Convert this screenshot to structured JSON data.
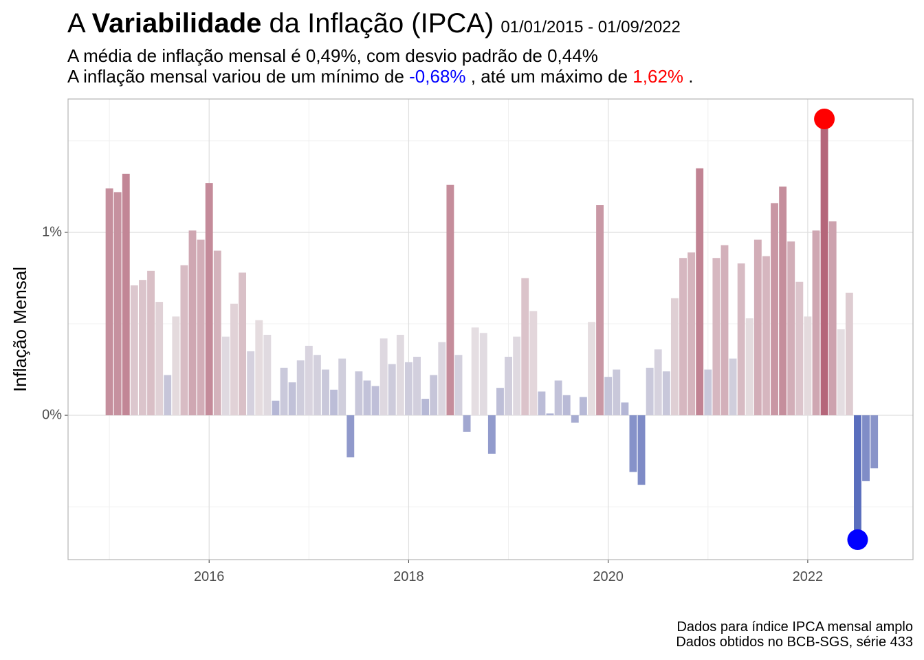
{
  "chart_data": {
    "type": "bar",
    "title_parts": [
      "A ",
      "Variabilidade",
      " da Inflação (IPCA)"
    ],
    "date_range": "01/01/2015 - 01/09/2022",
    "subtitle_line1": "A média de inflação mensal é 0,49%, com desvio padrão de 0,44%",
    "subtitle_line2_parts": [
      "A inflação mensal variou de um mínimo de ",
      "-0,68%",
      " , até um máximo de ",
      "1,62%",
      " ."
    ],
    "subtitle_colors": [
      "#000000",
      "#0000ff",
      "#000000",
      "#ff0000",
      "#000000"
    ],
    "ylabel": "Inflação Mensal",
    "caption": [
      "Dados para índice IPCA mensal amplo",
      "Dados obtidos no BCB-SGS, série 433"
    ],
    "x": [
      "2015-01",
      "2015-02",
      "2015-03",
      "2015-04",
      "2015-05",
      "2015-06",
      "2015-07",
      "2015-08",
      "2015-09",
      "2015-10",
      "2015-11",
      "2015-12",
      "2016-01",
      "2016-02",
      "2016-03",
      "2016-04",
      "2016-05",
      "2016-06",
      "2016-07",
      "2016-08",
      "2016-09",
      "2016-10",
      "2016-11",
      "2016-12",
      "2017-01",
      "2017-02",
      "2017-03",
      "2017-04",
      "2017-05",
      "2017-06",
      "2017-07",
      "2017-08",
      "2017-09",
      "2017-10",
      "2017-11",
      "2017-12",
      "2018-01",
      "2018-02",
      "2018-03",
      "2018-04",
      "2018-05",
      "2018-06",
      "2018-07",
      "2018-08",
      "2018-09",
      "2018-10",
      "2018-11",
      "2018-12",
      "2019-01",
      "2019-02",
      "2019-03",
      "2019-04",
      "2019-05",
      "2019-06",
      "2019-07",
      "2019-08",
      "2019-09",
      "2019-10",
      "2019-11",
      "2019-12",
      "2020-01",
      "2020-02",
      "2020-03",
      "2020-04",
      "2020-05",
      "2020-06",
      "2020-07",
      "2020-08",
      "2020-09",
      "2020-10",
      "2020-11",
      "2020-12",
      "2021-01",
      "2021-02",
      "2021-03",
      "2021-04",
      "2021-05",
      "2021-06",
      "2021-07",
      "2021-08",
      "2021-09",
      "2021-10",
      "2021-11",
      "2021-12",
      "2022-01",
      "2022-02",
      "2022-03",
      "2022-04",
      "2022-05",
      "2022-06",
      "2022-07",
      "2022-08",
      "2022-09"
    ],
    "values": [
      1.24,
      1.22,
      1.32,
      0.71,
      0.74,
      0.79,
      0.62,
      0.22,
      0.54,
      0.82,
      1.01,
      0.96,
      1.27,
      0.9,
      0.43,
      0.61,
      0.78,
      0.35,
      0.52,
      0.44,
      0.08,
      0.26,
      0.18,
      0.3,
      0.38,
      0.33,
      0.25,
      0.14,
      0.31,
      -0.23,
      0.24,
      0.19,
      0.16,
      0.42,
      0.28,
      0.44,
      0.29,
      0.32,
      0.09,
      0.22,
      0.4,
      1.26,
      0.33,
      -0.09,
      0.48,
      0.45,
      -0.21,
      0.15,
      0.32,
      0.43,
      0.75,
      0.57,
      0.13,
      0.01,
      0.19,
      0.11,
      -0.04,
      0.1,
      0.51,
      1.15,
      0.21,
      0.25,
      0.07,
      -0.31,
      -0.38,
      0.26,
      0.36,
      0.24,
      0.64,
      0.86,
      0.89,
      1.35,
      0.25,
      0.86,
      0.93,
      0.31,
      0.83,
      0.53,
      0.96,
      0.87,
      1.16,
      1.25,
      0.95,
      0.73,
      0.54,
      1.01,
      1.62,
      1.06,
      0.47,
      0.67,
      -0.68,
      -0.36,
      -0.29
    ],
    "color_scale": {
      "low": "#5a6ebd",
      "mid": "#e6dfe2",
      "high": "#b5667a",
      "midpoint": 0.49
    },
    "max_color": "#ff0000",
    "min_color": "#0000ff",
    "xlim": [
      2014.586,
      2023.055
    ],
    "xticks": [
      2016,
      2018,
      2020,
      2022
    ],
    "xminor": [
      2015,
      2017,
      2019,
      2021
    ],
    "ylim": [
      -0.789,
      1.729
    ],
    "yticks": [
      {
        "value": 0,
        "label": "0%"
      },
      {
        "value": 1,
        "label": "1%"
      }
    ],
    "yminor": [
      -0.5,
      0.5,
      1.5
    ],
    "grid": true
  }
}
